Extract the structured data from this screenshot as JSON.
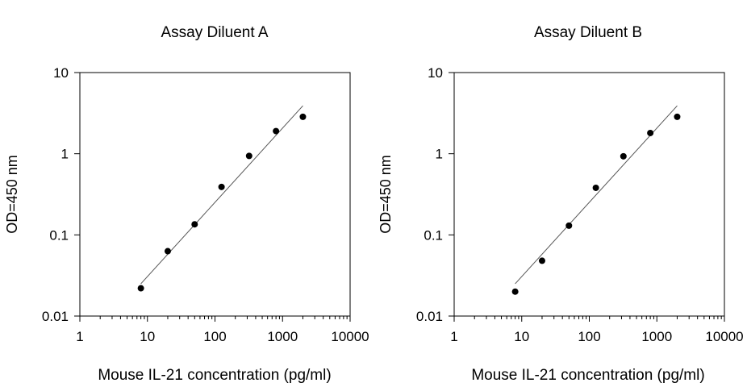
{
  "chart_data": [
    {
      "type": "scatter",
      "title": "Assay Diluent A",
      "xlabel": "Mouse IL-21 concentration (pg/ml)",
      "ylabel": "OD=450 nm",
      "xscale": "log",
      "yscale": "log",
      "xlim": [
        1,
        10000
      ],
      "ylim": [
        0.01,
        10
      ],
      "xticks": [
        "1",
        "10",
        "100",
        "1000",
        "10000"
      ],
      "yticks": [
        "0.01",
        "0.1",
        "1",
        "10"
      ],
      "grid": false,
      "points": [
        {
          "x": 8,
          "y": 0.022
        },
        {
          "x": 20,
          "y": 0.063
        },
        {
          "x": 50,
          "y": 0.135
        },
        {
          "x": 125,
          "y": 0.39
        },
        {
          "x": 320,
          "y": 0.94
        },
        {
          "x": 800,
          "y": 1.9
        },
        {
          "x": 2000,
          "y": 2.85
        }
      ],
      "fit_line": [
        {
          "x": 8,
          "y": 0.025
        },
        {
          "x": 2000,
          "y": 3.9
        }
      ]
    },
    {
      "type": "scatter",
      "title": "Assay Diluent B",
      "xlabel": "Mouse IL-21 concentration (pg/ml)",
      "ylabel": "OD=450 nm",
      "xscale": "log",
      "yscale": "log",
      "xlim": [
        1,
        10000
      ],
      "ylim": [
        0.01,
        10
      ],
      "xticks": [
        "1",
        "10",
        "100",
        "1000",
        "10000"
      ],
      "yticks": [
        "0.01",
        "0.1",
        "1",
        "10"
      ],
      "grid": false,
      "points": [
        {
          "x": 8,
          "y": 0.02
        },
        {
          "x": 20,
          "y": 0.048
        },
        {
          "x": 50,
          "y": 0.13
        },
        {
          "x": 125,
          "y": 0.38
        },
        {
          "x": 320,
          "y": 0.93
        },
        {
          "x": 800,
          "y": 1.8
        },
        {
          "x": 2000,
          "y": 2.85
        }
      ],
      "fit_line": [
        {
          "x": 8,
          "y": 0.025
        },
        {
          "x": 2000,
          "y": 3.9
        }
      ]
    }
  ]
}
